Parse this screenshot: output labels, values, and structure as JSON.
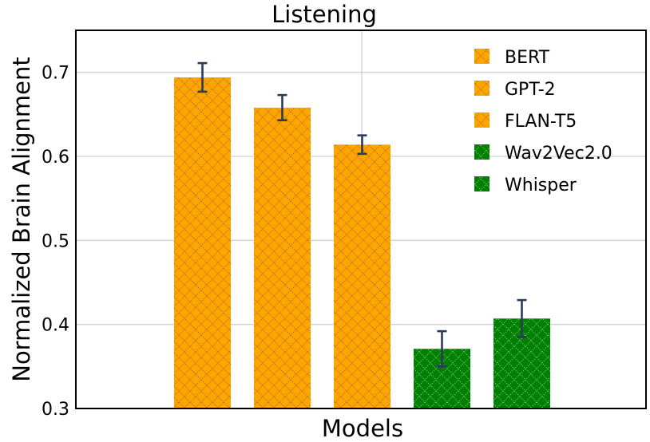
{
  "chart_data": {
    "type": "bar",
    "title": "Listening",
    "xlabel": "Models",
    "ylabel": "Normalized Brain Alignment",
    "ylim": [
      0.3,
      0.75
    ],
    "yticks": [
      0.3,
      0.4,
      0.5,
      0.6,
      0.7
    ],
    "ytick_labels": [
      "0.3",
      "0.4",
      "0.5",
      "0.6",
      "0.7"
    ],
    "grid": true,
    "legend_position": "top-right",
    "categories": [
      "BERT",
      "GPT-2",
      "FLAN-T5",
      "Wav2Vec2.0",
      "Whisper"
    ],
    "values": [
      0.694,
      0.658,
      0.614,
      0.371,
      0.407
    ],
    "errors": [
      0.017,
      0.015,
      0.011,
      0.021,
      0.022
    ],
    "colors": [
      "#ffa500",
      "#ffa500",
      "#ffa500",
      "#008000",
      "#008000"
    ],
    "legend": [
      {
        "label": "BERT",
        "color": "#ffa500"
      },
      {
        "label": "GPT-2",
        "color": "#ffa500"
      },
      {
        "label": "FLAN-T5",
        "color": "#ffa500"
      },
      {
        "label": "Wav2Vec2.0",
        "color": "#008000"
      },
      {
        "label": "Whisper",
        "color": "#008000"
      }
    ]
  }
}
